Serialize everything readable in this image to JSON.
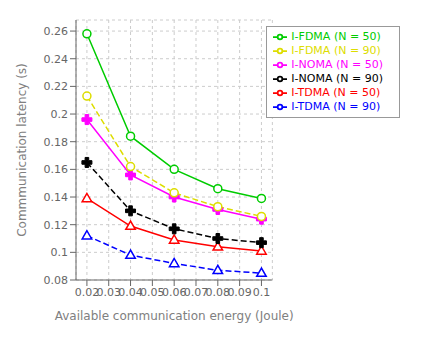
{
  "chart_data": {
    "type": "line",
    "xlabel": "Available communication energy (Joule)",
    "ylabel": "Commmunication latency (s)",
    "x": [
      0.02,
      0.04,
      0.06,
      0.08,
      0.1
    ],
    "series": [
      {
        "name": "I-TDMA (N = 50)",
        "values": [
          0.139,
          0.119,
          0.109,
          0.104,
          0.101
        ],
        "color": "#ff0000",
        "line_style": "solid",
        "marker": "triangle"
      },
      {
        "name": "I-NOMA (N = 50)",
        "values": [
          0.196,
          0.156,
          0.14,
          0.131,
          0.124
        ],
        "color": "#ff00ff",
        "line_style": "solid",
        "marker": "plus"
      },
      {
        "name": "I-FDMA (N = 50)",
        "values": [
          0.258,
          0.184,
          0.16,
          0.146,
          0.139
        ],
        "color": "#00cc00",
        "line_style": "solid",
        "marker": "circle"
      },
      {
        "name": "I-TDMA (N = 90)",
        "values": [
          0.112,
          0.098,
          0.092,
          0.087,
          0.085
        ],
        "color": "#0000ff",
        "line_style": "dashed",
        "marker": "triangle"
      },
      {
        "name": "I-NOMA (N = 90)",
        "values": [
          0.165,
          0.13,
          0.117,
          0.11,
          0.107
        ],
        "color": "#000000",
        "line_style": "dashed",
        "marker": "plus"
      },
      {
        "name": "I-FDMA (N = 90)",
        "values": [
          0.213,
          0.162,
          0.143,
          0.133,
          0.126
        ],
        "color": "#dddd00",
        "line_style": "dashed",
        "marker": "circle"
      }
    ],
    "xlim": [
      0.015,
      0.105
    ],
    "ylim": [
      0.08,
      0.268
    ],
    "xticks": [
      0.02,
      0.03,
      0.04,
      0.05,
      0.06,
      0.07,
      0.08,
      0.09,
      0.1
    ],
    "yticks": [
      0.08,
      0.1,
      0.12,
      0.14,
      0.16,
      0.18,
      0.2,
      0.22,
      0.24,
      0.26
    ],
    "grid": true,
    "legend": "upper right"
  }
}
